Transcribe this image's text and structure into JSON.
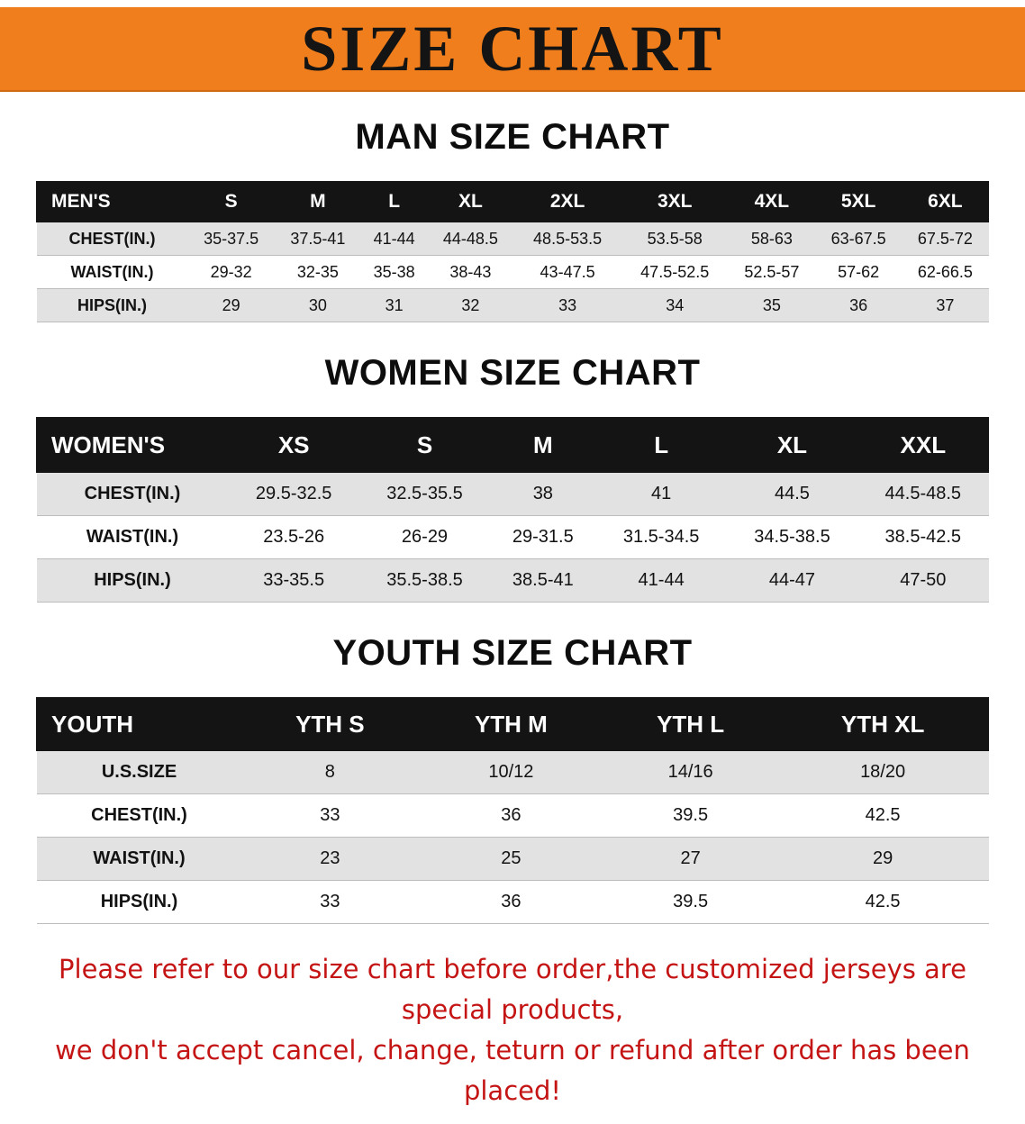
{
  "banner": {
    "title": "SIZE CHART"
  },
  "sections": [
    {
      "id": "men",
      "heading": "MAN SIZE CHART",
      "table": {
        "header": [
          "MEN'S",
          "S",
          "M",
          "L",
          "XL",
          "2XL",
          "3XL",
          "4XL",
          "5XL",
          "6XL"
        ],
        "rows": [
          [
            "CHEST(IN.)",
            "35-37.5",
            "37.5-41",
            "41-44",
            "44-48.5",
            "48.5-53.5",
            "53.5-58",
            "58-63",
            "63-67.5",
            "67.5-72"
          ],
          [
            "WAIST(IN.)",
            "29-32",
            "32-35",
            "35-38",
            "38-43",
            "43-47.5",
            "47.5-52.5",
            "52.5-57",
            "57-62",
            "62-66.5"
          ],
          [
            "HIPS(IN.)",
            "29",
            "30",
            "31",
            "32",
            "33",
            "34",
            "35",
            "36",
            "37"
          ]
        ]
      }
    },
    {
      "id": "women",
      "heading": "WOMEN SIZE CHART",
      "table": {
        "header": [
          "WOMEN'S",
          "XS",
          "S",
          "M",
          "L",
          "XL",
          "XXL"
        ],
        "rows": [
          [
            "CHEST(IN.)",
            "29.5-32.5",
            "32.5-35.5",
            "38",
            "41",
            "44.5",
            "44.5-48.5"
          ],
          [
            "WAIST(IN.)",
            "23.5-26",
            "26-29",
            "29-31.5",
            "31.5-34.5",
            "34.5-38.5",
            "38.5-42.5"
          ],
          [
            "HIPS(IN.)",
            "33-35.5",
            "35.5-38.5",
            "38.5-41",
            "41-44",
            "44-47",
            "47-50"
          ]
        ]
      }
    },
    {
      "id": "youth",
      "heading": "YOUTH SIZE CHART",
      "table": {
        "header": [
          "YOUTH",
          "YTH S",
          "YTH M",
          "YTH L",
          "YTH XL"
        ],
        "rows": [
          [
            "U.S.SIZE",
            "8",
            "10/12",
            "14/16",
            "18/20"
          ],
          [
            "CHEST(IN.)",
            "33",
            "36",
            "39.5",
            "42.5"
          ],
          [
            "WAIST(IN.)",
            "23",
            "25",
            "27",
            "29"
          ],
          [
            "HIPS(IN.)",
            "33",
            "36",
            "39.5",
            "42.5"
          ]
        ]
      }
    }
  ],
  "footer": {
    "line1": "Please refer to our size chart before order,the customized jerseys are special products,",
    "line2": "we don't accept cancel, change, teturn or refund after order has been placed!"
  },
  "colors": {
    "banner_orange": "#f07e1c",
    "table_header_black": "#141414",
    "row_stripe_gray": "#e2e2e2",
    "notice_red": "#c41414"
  }
}
